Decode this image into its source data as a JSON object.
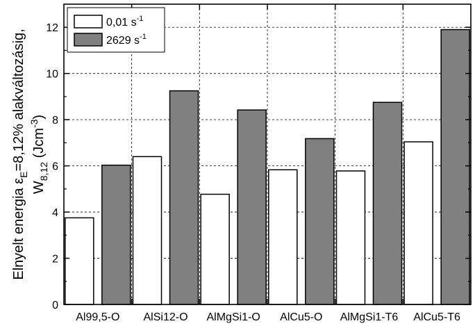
{
  "chart_data": {
    "type": "bar",
    "categories": [
      "Al99,5-O",
      "AlSi12-O",
      "AlMgSi1-O",
      "AlCu5-O",
      "AlMgSi1-T6",
      "AlCu5-T6"
    ],
    "series": [
      {
        "name": "0,01 s",
        "name_sup": "-1",
        "color": "#ffffff",
        "values": [
          3.75,
          6.4,
          4.77,
          5.83,
          5.78,
          7.04
        ]
      },
      {
        "name": "2629 s",
        "name_sup": "-1",
        "color": "#808080",
        "values": [
          6.03,
          9.25,
          8.42,
          7.18,
          8.75,
          11.9
        ]
      }
    ],
    "ylabel": {
      "line1_a": "Elnyelt energia ε",
      "line1_sub": "E",
      "line1_b": "=8,12% alakváltozásig,",
      "line2_a": "W",
      "line2_sub": "8,12",
      "line2_b": " (Jcm",
      "line2_sup": "-3",
      "line2_c": ")"
    },
    "xlabel": "",
    "ylim": [
      0,
      13
    ],
    "yticks": [
      0,
      2,
      4,
      6,
      8,
      10,
      12
    ],
    "grid": true,
    "legend_position": "top-left"
  }
}
